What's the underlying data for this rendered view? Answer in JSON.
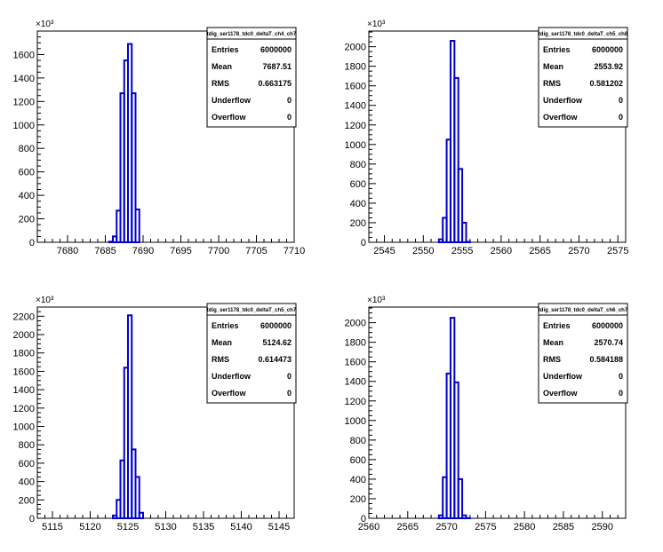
{
  "colors": {
    "histogram": "#0000cc",
    "axis": "#000000",
    "background": "#ffffff"
  },
  "chart_data": [
    {
      "type": "histogram",
      "title": "tdig_ser1178_tdc0_deltaT_ch4_ch7",
      "y_exponent_label": "×10³",
      "xlim": [
        7676,
        7710
      ],
      "ylim": [
        0,
        1800
      ],
      "x_ticks": [
        7680,
        7685,
        7690,
        7695,
        7700,
        7705,
        7710
      ],
      "y_ticks": [
        0,
        200,
        400,
        600,
        800,
        1000,
        1200,
        1400,
        1600
      ],
      "bin_width": 0.5,
      "bins_x": [
        7685.5,
        7686,
        7686.5,
        7687,
        7687.5,
        7688,
        7688.5,
        7689
      ],
      "bins_y": [
        5,
        50,
        270,
        1270,
        1550,
        1690,
        1270,
        280
      ],
      "stats": [
        {
          "label": "Entries",
          "value": "6000000"
        },
        {
          "label": "Mean",
          "value": "7687.51"
        },
        {
          "label": "RMS",
          "value": "0.663175"
        },
        {
          "label": "Underflow",
          "value": "0"
        },
        {
          "label": "Overflow",
          "value": "0"
        }
      ]
    },
    {
      "type": "histogram",
      "title": "tdig_ser1178_tdc0_deltaT_ch5_ch8",
      "y_exponent_label": "×10³",
      "xlim": [
        2543,
        2576
      ],
      "ylim": [
        0,
        2160
      ],
      "x_ticks": [
        2545,
        2550,
        2555,
        2560,
        2565,
        2570,
        2575
      ],
      "y_ticks": [
        0,
        200,
        400,
        600,
        800,
        1000,
        1200,
        1400,
        1600,
        1800,
        2000
      ],
      "bin_width": 0.5,
      "bins_x": [
        2552,
        2552.5,
        2553,
        2553.5,
        2554,
        2554.5,
        2555,
        2555.5
      ],
      "bins_y": [
        30,
        250,
        1050,
        2060,
        1680,
        750,
        200,
        5
      ],
      "stats": [
        {
          "label": "Entries",
          "value": "6000000"
        },
        {
          "label": "Mean",
          "value": "2553.92"
        },
        {
          "label": "RMS",
          "value": "0.581202"
        },
        {
          "label": "Underflow",
          "value": "0"
        },
        {
          "label": "Overflow",
          "value": "0"
        }
      ]
    },
    {
      "type": "histogram",
      "title": "tdig_ser1178_tdc0_deltaT_ch5_ch7",
      "y_exponent_label": "×10³",
      "xlim": [
        5113,
        5147
      ],
      "ylim": [
        0,
        2300
      ],
      "x_ticks": [
        5115,
        5120,
        5125,
        5130,
        5135,
        5140,
        5145
      ],
      "y_ticks": [
        0,
        200,
        400,
        600,
        800,
        1000,
        1200,
        1400,
        1600,
        1800,
        2000,
        2200
      ],
      "bin_width": 0.5,
      "bins_x": [
        5123,
        5123.5,
        5124,
        5124.5,
        5125,
        5125.5,
        5126,
        5126.5
      ],
      "bins_y": [
        30,
        200,
        630,
        1640,
        2210,
        750,
        450,
        60
      ],
      "stats": [
        {
          "label": "Entries",
          "value": "6000000"
        },
        {
          "label": "Mean",
          "value": "5124.62"
        },
        {
          "label": "RMS",
          "value": "0.614473"
        },
        {
          "label": "Underflow",
          "value": "0"
        },
        {
          "label": "Overflow",
          "value": "0"
        }
      ]
    },
    {
      "type": "histogram",
      "title": "tdig_ser1178_tdc0_deltaT_ch6_ch7",
      "y_exponent_label": "×10³",
      "xlim": [
        2560,
        2593
      ],
      "ylim": [
        0,
        2160
      ],
      "x_ticks": [
        2560,
        2565,
        2570,
        2575,
        2580,
        2585,
        2590
      ],
      "y_ticks": [
        0,
        200,
        400,
        600,
        800,
        1000,
        1200,
        1400,
        1600,
        1800,
        2000
      ],
      "bin_width": 0.5,
      "bins_x": [
        2569,
        2569.5,
        2570,
        2570.5,
        2571,
        2571.5,
        2572,
        2572.5
      ],
      "bins_y": [
        30,
        420,
        1480,
        2050,
        1390,
        400,
        30,
        2
      ],
      "stats": [
        {
          "label": "Entries",
          "value": "6000000"
        },
        {
          "label": "Mean",
          "value": "2570.74"
        },
        {
          "label": "RMS",
          "value": "0.584188"
        },
        {
          "label": "Underflow",
          "value": "0"
        },
        {
          "label": "Overflow",
          "value": "0"
        }
      ]
    }
  ]
}
